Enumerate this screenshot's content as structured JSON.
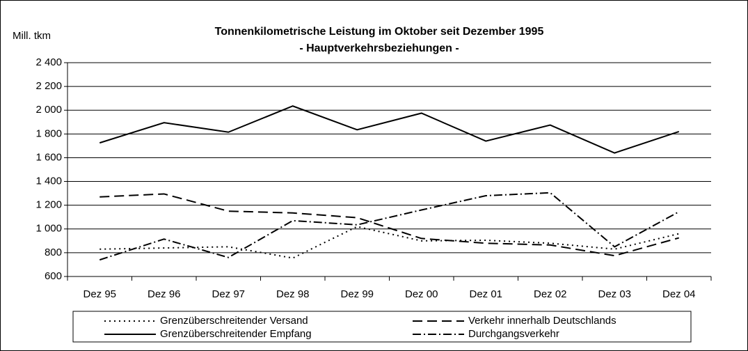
{
  "chart_data": {
    "type": "line",
    "title": "Tonnenkilometrische Leistung im Oktober seit Dezember 1995",
    "subtitle": "- Hauptverkehrsbeziehungen -",
    "y_label": "Mill. tkm",
    "categories": [
      "Dez 95",
      "Dez 96",
      "Dez 97",
      "Dez 98",
      "Dez 99",
      "Dez 00",
      "Dez 01",
      "Dez 02",
      "Dez 03",
      "Dez 04"
    ],
    "series": [
      {
        "name": "Grenzüberschreitender Versand",
        "color": "#000000",
        "dash": "2,5",
        "values": [
          830,
          840,
          850,
          755,
          1020,
          900,
          905,
          880,
          830,
          960
        ]
      },
      {
        "name": "Verkehr innerhalb Deutschlands",
        "color": "#000000",
        "dash": "14,7",
        "values": [
          1270,
          1295,
          1150,
          1135,
          1095,
          920,
          880,
          865,
          775,
          925
        ]
      },
      {
        "name": "Grenzüberschreitender Empfang",
        "color": "#000000",
        "dash": "none",
        "values": [
          1725,
          1895,
          1815,
          2035,
          1835,
          1975,
          1740,
          1875,
          1640,
          1820
        ]
      },
      {
        "name": "Durchgangsverkehr",
        "color": "#000000",
        "dash": "12,4,2,4",
        "values": [
          740,
          915,
          760,
          1070,
          1035,
          1160,
          1280,
          1305,
          850,
          1145
        ]
      }
    ],
    "ylim": [
      600,
      2400
    ],
    "yticks": [
      600,
      800,
      {
        "value": 1000,
        "label": "1 000"
      },
      {
        "value": 1200,
        "label": "1 200"
      },
      {
        "value": 1400,
        "label": "1 400"
      },
      {
        "value": 1600,
        "label": "1 600"
      },
      {
        "value": 1800,
        "label": "1 800"
      },
      {
        "value": 2000,
        "label": "2 000"
      },
      {
        "value": 2200,
        "label": "2 200"
      },
      {
        "value": 2400,
        "label": "2 400"
      }
    ],
    "grid": true
  }
}
